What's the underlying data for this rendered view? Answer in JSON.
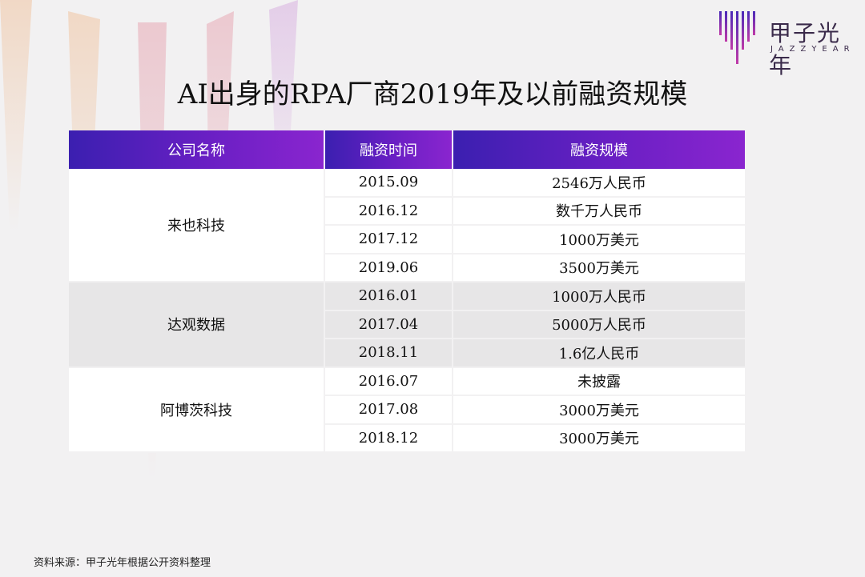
{
  "logo": {
    "cn": "甲子光年",
    "en": "JAZZYEAR"
  },
  "title": "AI出身的RPA厂商2019年及以前融资规模",
  "table": {
    "headers": [
      "公司名称",
      "融资时间",
      "融资规模"
    ],
    "groups": [
      {
        "company": "来也科技",
        "rows": [
          {
            "date": "2015.09",
            "amount": "2546万人民币"
          },
          {
            "date": "2016.12",
            "amount": "数千万人民币"
          },
          {
            "date": "2017.12",
            "amount": "1000万美元"
          },
          {
            "date": "2019.06",
            "amount": "3500万美元"
          }
        ]
      },
      {
        "company": "达观数据",
        "rows": [
          {
            "date": "2016.01",
            "amount": "1000万人民币"
          },
          {
            "date": "2017.04",
            "amount": "5000万人民币"
          },
          {
            "date": "2018.11",
            "amount": "1.6亿人民币"
          }
        ]
      },
      {
        "company": "阿博茨科技",
        "rows": [
          {
            "date": "2016.07",
            "amount": "未披露"
          },
          {
            "date": "2017.08",
            "amount": "3000万美元"
          },
          {
            "date": "2018.12",
            "amount": "3000万美元"
          }
        ]
      }
    ]
  },
  "source": "资料来源：甲子光年根据公开资料整理"
}
